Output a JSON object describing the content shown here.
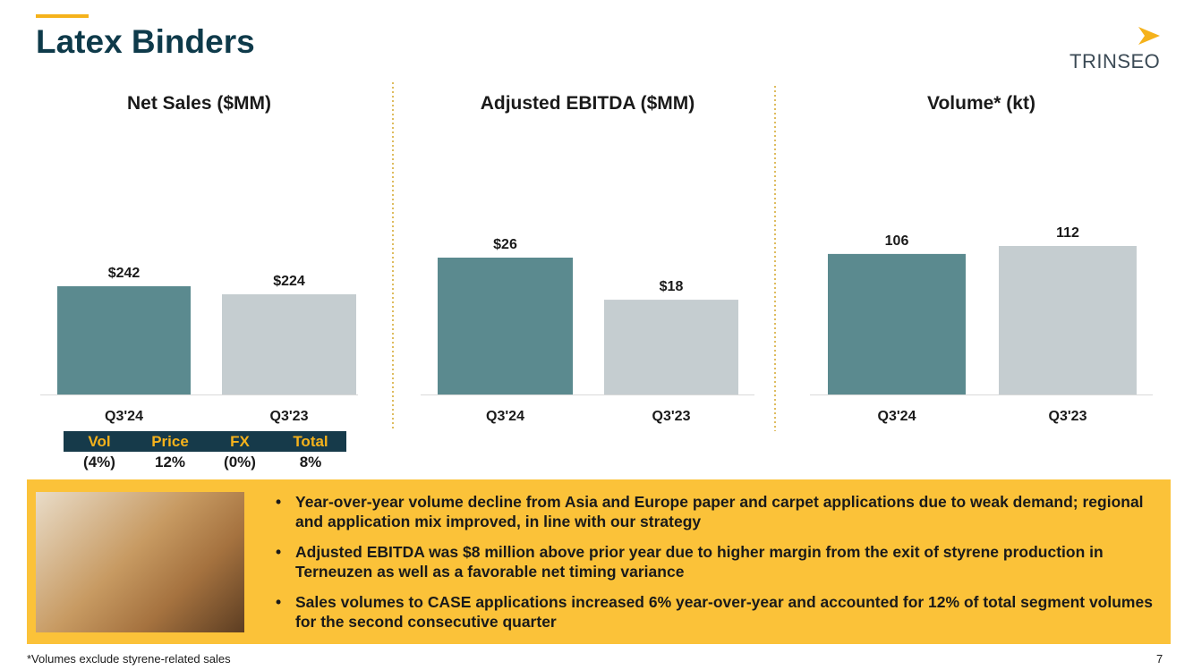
{
  "header": {
    "title": "Latex Binders",
    "logo": "TRINSEO"
  },
  "chart_data": [
    {
      "type": "bar",
      "title": "Net Sales ($MM)",
      "categories": [
        "Q3'24",
        "Q3'23"
      ],
      "values": [
        242,
        224
      ],
      "value_labels": [
        "$242",
        "$224"
      ],
      "colors": [
        "#5b8a8f",
        "#c5cdd0"
      ]
    },
    {
      "type": "bar",
      "title": "Adjusted EBITDA ($MM)",
      "categories": [
        "Q3'24",
        "Q3'23"
      ],
      "values": [
        26,
        18
      ],
      "value_labels": [
        "$26",
        "$18"
      ],
      "colors": [
        "#5b8a8f",
        "#c5cdd0"
      ]
    },
    {
      "type": "bar",
      "title": "Volume* (kt)",
      "categories": [
        "Q3'24",
        "Q3'23"
      ],
      "values": [
        106,
        112
      ],
      "colors": [
        "#5b8a8f",
        "#c5cdd0"
      ]
    }
  ],
  "bridge": {
    "headers": [
      "Vol",
      "Price",
      "FX",
      "Total"
    ],
    "values": [
      "(4%)",
      "12%",
      "(0%)",
      "8%"
    ]
  },
  "bullets": [
    "Year-over-year volume decline from Asia and Europe paper and carpet applications due to weak demand; regional and application mix improved, in line with our strategy",
    "Adjusted EBITDA was $8 million above prior year due to higher margin from the exit of styrene production in Terneuzen as well as a favorable net timing variance",
    "Sales volumes to CASE applications increased 6% year-over-year and accounted for 12% of total segment volumes for the second consecutive quarter"
  ],
  "footnote": "*Volumes exclude styrene-related sales",
  "page_number": "7"
}
